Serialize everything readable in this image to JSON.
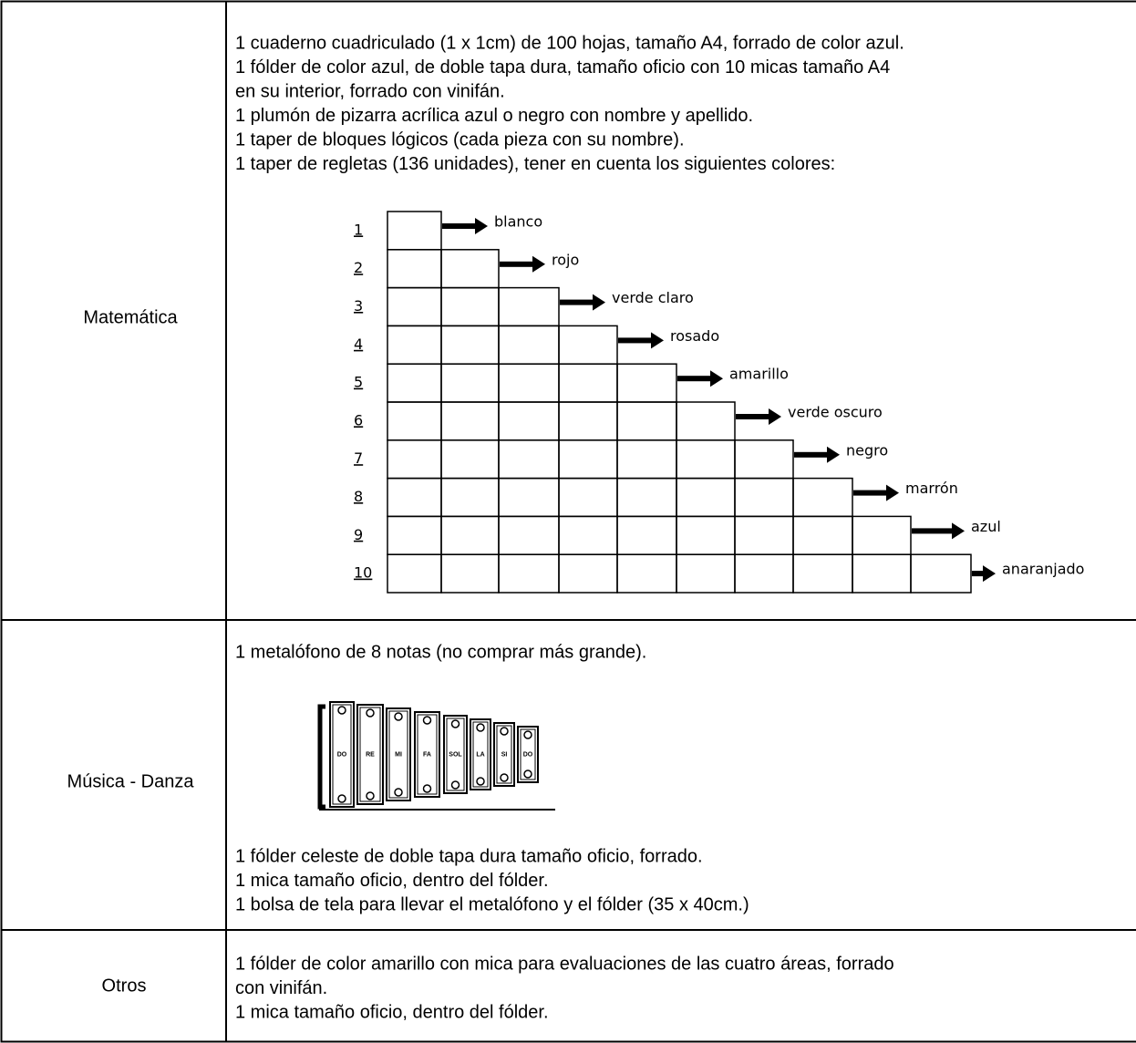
{
  "table": {
    "rows": [
      {
        "area": "Matemática",
        "lines": [
          "1 cuaderno cuadriculado (1 x 1cm) de 100 hojas, tamaño A4, forrado de color azul.",
          "1 fólder de color azul, de doble tapa dura,  tamaño oficio con 10 micas tamaño A4",
          "en su interior, forrado con vinifán.",
          "1 plumón de pizarra acrílica azul o negro con nombre y apellido.",
          "1 taper de bloques lógicos (cada pieza con su nombre).",
          "1 taper de regletas (136 unidades), tener en cuenta los siguientes colores:"
        ],
        "regletas": [
          {
            "number": "1",
            "color": "blanco"
          },
          {
            "number": "2",
            "color": "rojo"
          },
          {
            "number": "3",
            "color": "verde claro"
          },
          {
            "number": "4",
            "color": "rosado"
          },
          {
            "number": "5",
            "color": "amarillo"
          },
          {
            "number": "6",
            "color": "verde oscuro"
          },
          {
            "number": "7",
            "color": "negro"
          },
          {
            "number": "8",
            "color": "marrón"
          },
          {
            "number": "9",
            "color": "azul"
          },
          {
            "number": "10",
            "color": "anaranjado"
          }
        ]
      },
      {
        "area": "Música - Danza",
        "lines_before": [
          "1 metalófono de 8 notas (no comprar más grande)."
        ],
        "metallophone_notes": [
          "DO",
          "RE",
          "MI",
          "FA",
          "SOL",
          "LA",
          "SI",
          "DO"
        ],
        "lines_after": [
          "1 fólder celeste de doble tapa dura tamaño oficio, forrado.",
          "1 mica tamaño oficio, dentro del fólder.",
          "1 bolsa de tela para llevar el metalófono y el fólder (35 x 40cm.)"
        ]
      },
      {
        "area": "Otros",
        "lines": [
          "1 fólder de color amarillo con mica para evaluaciones de las cuatro áreas, forrado",
          "con vinifán.",
          "1 mica tamaño oficio, dentro del fólder."
        ]
      }
    ]
  }
}
